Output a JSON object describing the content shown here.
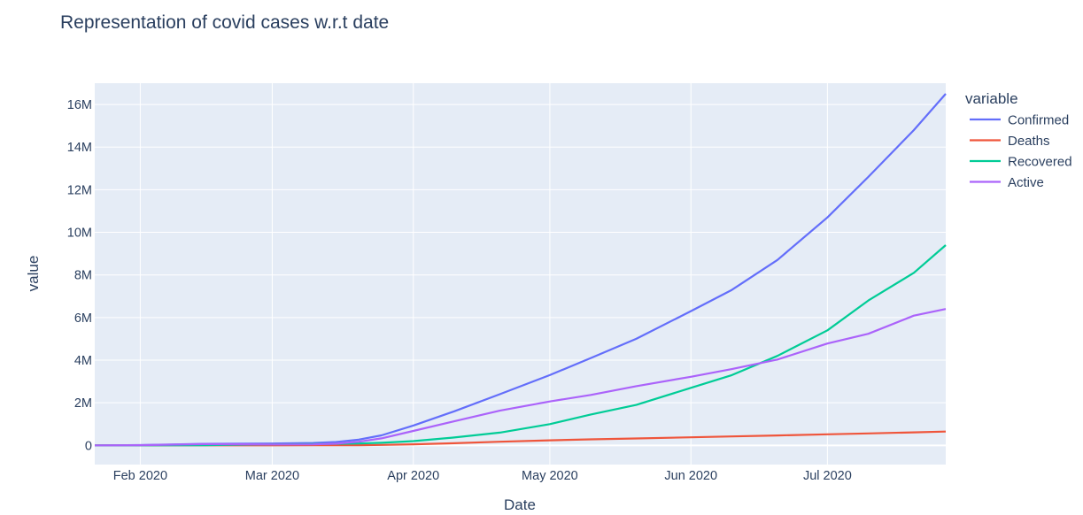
{
  "chart_data": {
    "type": "line",
    "title": "Representation of covid cases w.r.t date",
    "xlabel": "Date",
    "ylabel": "value",
    "x_range": [
      "2020-01-22",
      "2020-07-27"
    ],
    "ylim": [
      -900000,
      17000000
    ],
    "x_ticks": [
      {
        "date": "2020-02-01",
        "label": "Feb 2020"
      },
      {
        "date": "2020-03-01",
        "label": "Mar 2020"
      },
      {
        "date": "2020-04-01",
        "label": "Apr 2020"
      },
      {
        "date": "2020-05-01",
        "label": "May 2020"
      },
      {
        "date": "2020-06-01",
        "label": "Jun 2020"
      },
      {
        "date": "2020-07-01",
        "label": "Jul 2020"
      }
    ],
    "y_ticks": [
      {
        "value": 0,
        "label": "0"
      },
      {
        "value": 2000000,
        "label": "2M"
      },
      {
        "value": 4000000,
        "label": "4M"
      },
      {
        "value": 6000000,
        "label": "6M"
      },
      {
        "value": 8000000,
        "label": "8M"
      },
      {
        "value": 10000000,
        "label": "10M"
      },
      {
        "value": 12000000,
        "label": "12M"
      },
      {
        "value": 14000000,
        "label": "14M"
      },
      {
        "value": 16000000,
        "label": "16M"
      }
    ],
    "grid": true,
    "legend": {
      "title": "variable",
      "position": "right"
    },
    "plot_bg": "#e5ecf6",
    "x": [
      "2020-01-22",
      "2020-02-01",
      "2020-02-15",
      "2020-03-01",
      "2020-03-10",
      "2020-03-15",
      "2020-03-20",
      "2020-03-25",
      "2020-04-01",
      "2020-04-10",
      "2020-04-20",
      "2020-05-01",
      "2020-05-10",
      "2020-05-20",
      "2020-06-01",
      "2020-06-10",
      "2020-06-20",
      "2020-07-01",
      "2020-07-10",
      "2020-07-20",
      "2020-07-27"
    ],
    "series": [
      {
        "name": "Confirmed",
        "color": "#636efa",
        "values": [
          555,
          12000,
          70000,
          90000,
          115000,
          160000,
          270000,
          470000,
          930000,
          1600000,
          2400000,
          3300000,
          4100000,
          5000000,
          6300000,
          7300000,
          8700000,
          10700000,
          12600000,
          14800000,
          16500000
        ]
      },
      {
        "name": "Deaths",
        "color": "#ef553b",
        "values": [
          17,
          250,
          1500,
          3000,
          4300,
          6500,
          11000,
          22000,
          50000,
          100000,
          170000,
          240000,
          285000,
          325000,
          380000,
          420000,
          465000,
          520000,
          560000,
          610000,
          650000
        ]
      },
      {
        "name": "Recovered",
        "color": "#00cc96",
        "values": [
          28,
          300,
          9000,
          45000,
          65000,
          75000,
          90000,
          120000,
          200000,
          370000,
          600000,
          1000000,
          1450000,
          1900000,
          2700000,
          3300000,
          4200000,
          5400000,
          6800000,
          8100000,
          9400000
        ]
      },
      {
        "name": "Active",
        "color": "#ab63fa",
        "values": [
          510,
          11500,
          59000,
          42000,
          46000,
          80000,
          170000,
          330000,
          680000,
          1130000,
          1630000,
          2060000,
          2370000,
          2780000,
          3220000,
          3580000,
          4030000,
          4780000,
          5240000,
          6090000,
          6400000
        ]
      }
    ]
  }
}
